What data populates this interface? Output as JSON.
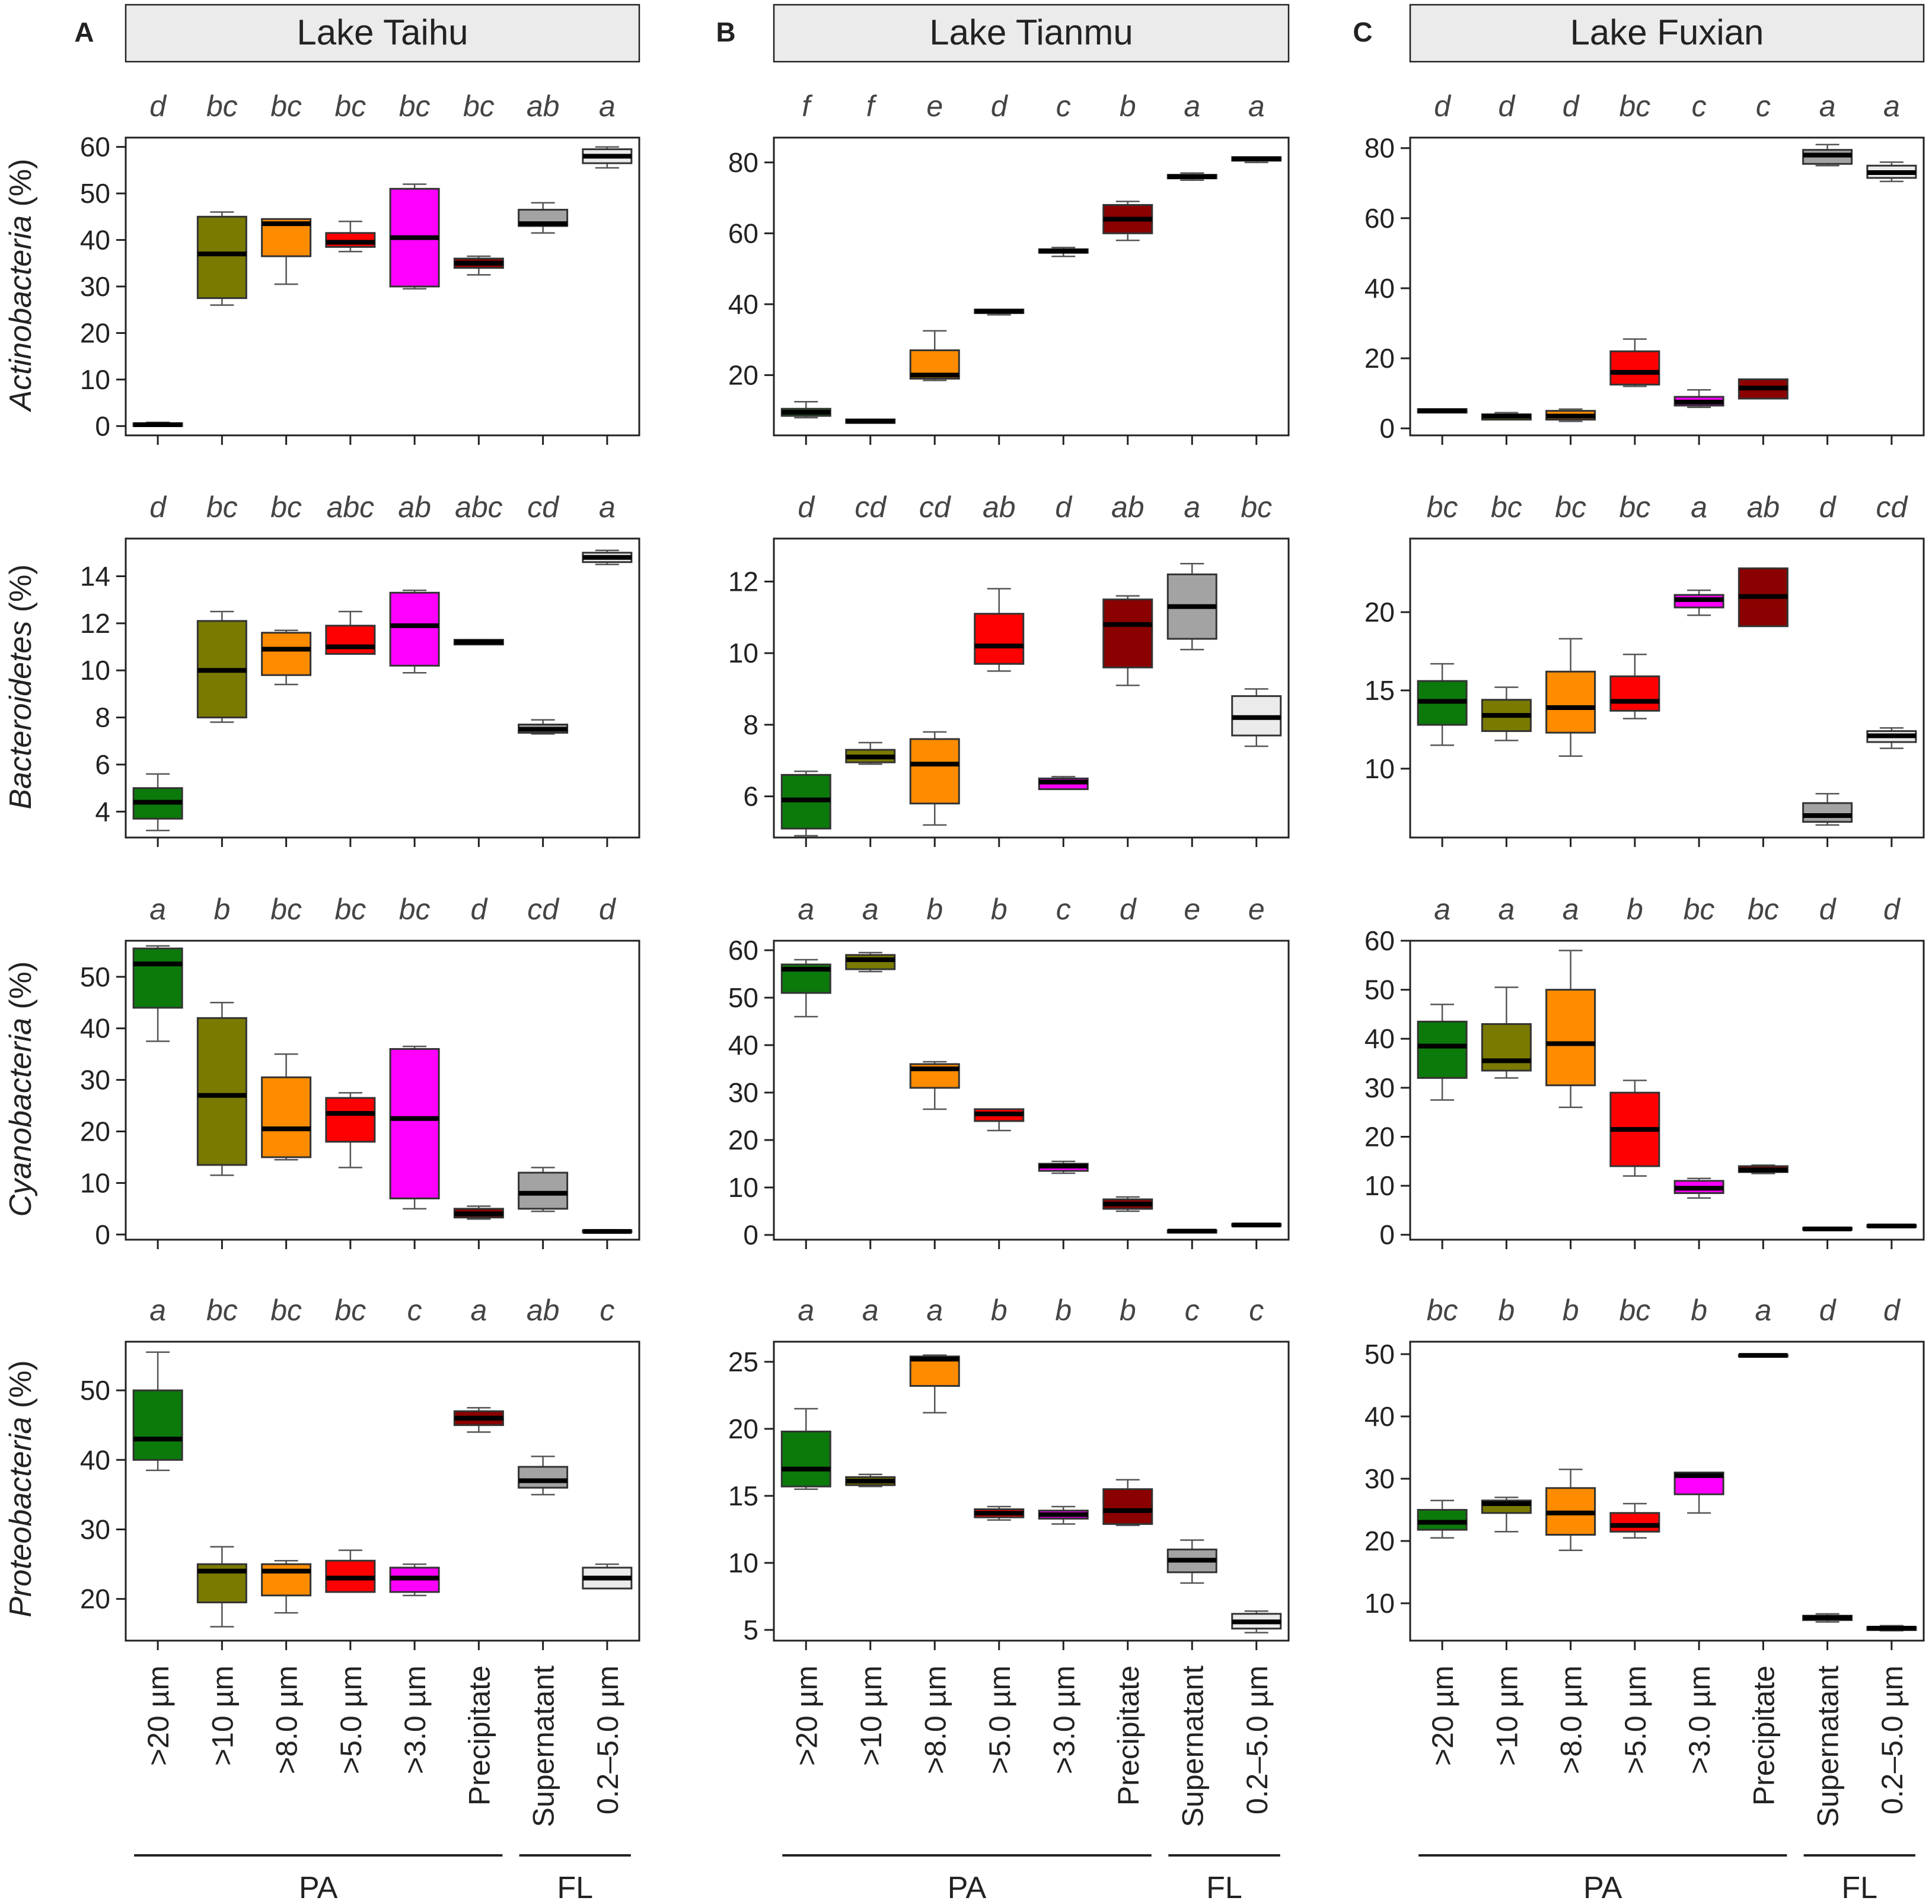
{
  "colors": {
    ">20 µm": "#0b7a0b",
    ">10 µm": "#7a7a00",
    ">8.0 µm": "#ff8c00",
    ">5.0 µm": "#ff0000",
    ">3.0 µm": "#ff00ff",
    "Precipitate": "#8b0000",
    "Supernatant": "#a3a3a3",
    "0.2–5.0 µm": "#ebebeb"
  },
  "figure": {
    "panels": [
      {
        "letter": "A",
        "lake": "Lake Taihu"
      },
      {
        "letter": "B",
        "lake": "Lake Tianmu"
      },
      {
        "letter": "C",
        "lake": "Lake Fuxian"
      }
    ],
    "groups": {
      "pa": "PA",
      "fl": "FL"
    }
  },
  "chart_data": {
    "type": "boxplot",
    "categories": [
      ">20 µm",
      ">10 µm",
      ">8.0 µm",
      ">5.0 µm",
      ">3.0 µm",
      "Precipitate",
      "Supernatant",
      "0.2–5.0 µm"
    ],
    "row_labels": [
      {
        "name": "Actinobacteria",
        "unit": " (%)"
      },
      {
        "name": "Bacteroidetes",
        "unit": " (%)"
      },
      {
        "name": "Cyanobacteria",
        "unit": " (%)"
      },
      {
        "name": "Proteobacteria",
        "unit": " (%)"
      }
    ],
    "panels": [
      [
        {
          "ylim": [
            -2,
            62
          ],
          "ticks": [
            0,
            10,
            20,
            30,
            40,
            50,
            60
          ],
          "letters": [
            "d",
            "bc",
            "bc",
            "bc",
            "bc",
            "bc",
            "ab",
            "a"
          ],
          "boxes": [
            [
              0,
              0,
              0.3,
              0.6,
              0.8
            ],
            [
              26,
              27.5,
              37,
              45,
              46
            ],
            [
              30.5,
              36.5,
              43.5,
              44.5,
              44.5
            ],
            [
              37.5,
              38.5,
              39.5,
              41.5,
              44
            ],
            [
              29.5,
              30,
              40.5,
              51,
              52
            ],
            [
              32.5,
              34,
              35,
              36,
              36.5
            ],
            [
              41.5,
              43,
              43.5,
              46.5,
              48
            ],
            [
              55.5,
              56.5,
              58,
              59.5,
              60
            ]
          ]
        },
        {
          "ylim": [
            3,
            87
          ],
          "ticks": [
            20,
            40,
            60,
            80
          ],
          "letters": [
            "f",
            "f",
            "e",
            "d",
            "c",
            "b",
            "a",
            "a"
          ],
          "boxes": [
            [
              8,
              8.5,
              9.5,
              10.5,
              12.5
            ],
            [
              6.5,
              6.5,
              7,
              7.5,
              7.5
            ],
            [
              18.5,
              19,
              20,
              27,
              32.5
            ],
            [
              37,
              37.5,
              38,
              38.5,
              38.5
            ],
            [
              53.5,
              54.5,
              55,
              55.5,
              56
            ],
            [
              58,
              60,
              64,
              68,
              69
            ],
            [
              75,
              75.5,
              76,
              76.5,
              77
            ],
            [
              80,
              80.5,
              81,
              81.5,
              81.5
            ]
          ]
        },
        {
          "ylim": [
            -2,
            83
          ],
          "ticks": [
            0,
            20,
            40,
            60,
            80
          ],
          "letters": [
            "d",
            "d",
            "d",
            "bc",
            "c",
            "c",
            "a",
            "a"
          ],
          "boxes": [
            [
              4.5,
              4.5,
              5,
              5.5,
              5.5
            ],
            [
              2.5,
              2.5,
              3.5,
              4,
              4.5
            ],
            [
              2,
              2.5,
              3.5,
              5,
              5.5
            ],
            [
              12,
              12.5,
              16,
              22,
              25.5
            ],
            [
              6,
              6.5,
              7.5,
              9,
              11
            ],
            [
              8.5,
              8.5,
              11.5,
              14,
              14
            ],
            [
              75,
              75.5,
              78,
              79.5,
              81
            ],
            [
              70.5,
              71.5,
              73,
              75,
              76
            ]
          ]
        }
      ],
      [
        {
          "ylim": [
            2.9,
            15.6
          ],
          "ticks": [
            4,
            6,
            8,
            10,
            12,
            14
          ],
          "letters": [
            "d",
            "bc",
            "bc",
            "abc",
            "ab",
            "abc",
            "cd",
            "a"
          ],
          "boxes": [
            [
              3.2,
              3.7,
              4.4,
              5,
              5.6
            ],
            [
              7.8,
              8,
              10,
              12.1,
              12.5
            ],
            [
              9.4,
              9.8,
              10.9,
              11.6,
              11.7
            ],
            [
              10.7,
              10.7,
              11,
              11.9,
              12.5
            ],
            [
              9.9,
              10.2,
              11.9,
              13.3,
              13.4
            ],
            [
              11.1,
              11.1,
              11.2,
              11.3,
              11.3
            ],
            [
              7.3,
              7.35,
              7.5,
              7.7,
              7.9
            ],
            [
              14.5,
              14.6,
              14.8,
              15.0,
              15.1
            ]
          ]
        },
        {
          "ylim": [
            4.85,
            13.2
          ],
          "ticks": [
            6,
            8,
            10,
            12
          ],
          "letters": [
            "d",
            "cd",
            "cd",
            "ab",
            "d",
            "ab",
            "a",
            "bc"
          ],
          "boxes": [
            [
              4.9,
              5.1,
              5.9,
              6.6,
              6.7
            ],
            [
              6.9,
              6.95,
              7.1,
              7.3,
              7.5
            ],
            [
              5.2,
              5.8,
              6.9,
              7.6,
              7.8
            ],
            [
              9.5,
              9.7,
              10.2,
              11.1,
              11.8
            ],
            [
              6.2,
              6.2,
              6.4,
              6.5,
              6.55
            ],
            [
              9.1,
              9.6,
              10.8,
              11.5,
              11.6
            ],
            [
              10.1,
              10.4,
              11.3,
              12.2,
              12.5
            ],
            [
              7.4,
              7.7,
              8.2,
              8.8,
              9.0
            ]
          ]
        },
        {
          "ylim": [
            5.6,
            24.7
          ],
          "ticks": [
            10,
            15,
            20
          ],
          "letters": [
            "bc",
            "bc",
            "bc",
            "bc",
            "a",
            "ab",
            "d",
            "cd"
          ],
          "boxes": [
            [
              11.5,
              12.8,
              14.3,
              15.6,
              16.7
            ],
            [
              11.8,
              12.4,
              13.4,
              14.4,
              15.2
            ],
            [
              10.8,
              12.3,
              13.9,
              16.2,
              18.3
            ],
            [
              13.2,
              13.7,
              14.3,
              15.9,
              17.3
            ],
            [
              19.8,
              20.3,
              20.8,
              21.1,
              21.4
            ],
            [
              19.1,
              19.1,
              21,
              22.8,
              22.8
            ],
            [
              6.4,
              6.6,
              7.0,
              7.8,
              8.4
            ],
            [
              11.3,
              11.7,
              12.1,
              12.4,
              12.6
            ]
          ]
        }
      ],
      [
        {
          "ylim": [
            -1,
            57
          ],
          "ticks": [
            0,
            10,
            20,
            30,
            40,
            50
          ],
          "letters": [
            "a",
            "b",
            "bc",
            "bc",
            "bc",
            "d",
            "cd",
            "d"
          ],
          "boxes": [
            [
              37.5,
              44,
              52.5,
              55.5,
              56
            ],
            [
              11.5,
              13.5,
              27,
              42,
              45
            ],
            [
              14.5,
              15,
              20.5,
              30.5,
              35
            ],
            [
              13,
              18,
              23.5,
              26.5,
              27.5
            ],
            [
              5,
              7,
              22.5,
              36,
              36.5
            ],
            [
              3,
              3.3,
              4,
              5,
              5.5
            ],
            [
              4.5,
              5,
              8,
              12,
              13
            ],
            [
              0.4,
              0.5,
              0.6,
              0.8,
              0.9
            ]
          ]
        },
        {
          "ylim": [
            -1,
            62
          ],
          "ticks": [
            0,
            10,
            20,
            30,
            40,
            50,
            60
          ],
          "letters": [
            "a",
            "a",
            "b",
            "b",
            "c",
            "d",
            "e",
            "e"
          ],
          "boxes": [
            [
              46,
              51,
              56,
              57,
              58
            ],
            [
              55.5,
              56,
              58,
              59,
              59.5
            ],
            [
              26.5,
              31,
              35,
              36,
              36.5
            ],
            [
              22,
              24,
              25.5,
              26.5,
              26.5
            ],
            [
              13,
              13.5,
              14.5,
              15,
              15.5
            ],
            [
              5,
              5.5,
              6.5,
              7.5,
              8
            ],
            [
              0.5,
              0.5,
              0.8,
              1,
              1
            ],
            [
              1.8,
              1.9,
              2.1,
              2.3,
              2.4
            ]
          ]
        },
        {
          "ylim": [
            -1,
            60
          ],
          "ticks": [
            0,
            10,
            20,
            30,
            40,
            50,
            60
          ],
          "letters": [
            "a",
            "a",
            "a",
            "b",
            "bc",
            "bc",
            "d",
            "d"
          ],
          "boxes": [
            [
              27.5,
              32,
              38.5,
              43.5,
              47
            ],
            [
              32,
              33.5,
              35.5,
              43,
              50.5
            ],
            [
              26,
              30.5,
              39,
              50,
              58
            ],
            [
              12,
              14,
              21.5,
              29,
              31.5
            ],
            [
              7.5,
              8.5,
              9.5,
              11,
              11.5
            ],
            [
              12.5,
              12.8,
              13.2,
              14,
              14.2
            ],
            [
              1,
              1.1,
              1.2,
              1.4,
              1.5
            ],
            [
              1.5,
              1.6,
              1.8,
              2,
              2.1
            ]
          ]
        }
      ],
      [
        {
          "ylim": [
            14,
            57
          ],
          "ticks": [
            20,
            30,
            40,
            50
          ],
          "letters": [
            "a",
            "bc",
            "bc",
            "bc",
            "c",
            "a",
            "ab",
            "c"
          ],
          "boxes": [
            [
              38.5,
              40,
              43,
              50,
              55.5
            ],
            [
              16,
              19.5,
              24,
              25,
              27.5
            ],
            [
              18,
              20.5,
              24,
              25,
              25.5
            ],
            [
              21,
              21,
              23,
              25.5,
              27
            ],
            [
              20.5,
              21,
              23,
              24.5,
              25
            ],
            [
              44,
              45,
              46,
              47,
              47.5
            ],
            [
              35,
              36,
              37,
              39,
              40.5
            ],
            [
              21.5,
              21.5,
              23,
              24.5,
              25
            ]
          ]
        },
        {
          "ylim": [
            4.2,
            26.5
          ],
          "ticks": [
            5,
            10,
            15,
            20,
            25
          ],
          "letters": [
            "a",
            "a",
            "a",
            "b",
            "b",
            "b",
            "c",
            "c"
          ],
          "boxes": [
            [
              15.5,
              15.7,
              17,
              19.8,
              21.5
            ],
            [
              15.7,
              15.8,
              16.1,
              16.4,
              16.6
            ],
            [
              21.2,
              23.2,
              25.2,
              25.4,
              25.5
            ],
            [
              13.2,
              13.4,
              13.7,
              14,
              14.2
            ],
            [
              12.9,
              13.3,
              13.6,
              13.9,
              14.2
            ],
            [
              12.8,
              12.9,
              13.9,
              15.5,
              16.2
            ],
            [
              8.5,
              9.3,
              10.2,
              11,
              11.7
            ],
            [
              4.8,
              5.1,
              5.6,
              6.2,
              6.4
            ]
          ]
        },
        {
          "ylim": [
            4,
            52
          ],
          "ticks": [
            10,
            20,
            30,
            40,
            50
          ],
          "letters": [
            "bc",
            "b",
            "b",
            "bc",
            "b",
            "a",
            "d",
            "d"
          ],
          "boxes": [
            [
              20.5,
              21.8,
              23,
              25,
              26.5
            ],
            [
              21.5,
              24.5,
              26,
              26.5,
              27
            ],
            [
              18.5,
              21,
              24.5,
              28.5,
              31.5
            ],
            [
              20.5,
              21.5,
              22.5,
              24.5,
              26
            ],
            [
              24.5,
              27.5,
              30.5,
              31,
              31
            ],
            [
              49.6,
              49.7,
              49.8,
              49.9,
              50
            ],
            [
              7,
              7.3,
              7.7,
              8,
              8.3
            ],
            [
              5.6,
              5.7,
              6,
              6.2,
              6.4
            ]
          ]
        }
      ]
    ]
  }
}
